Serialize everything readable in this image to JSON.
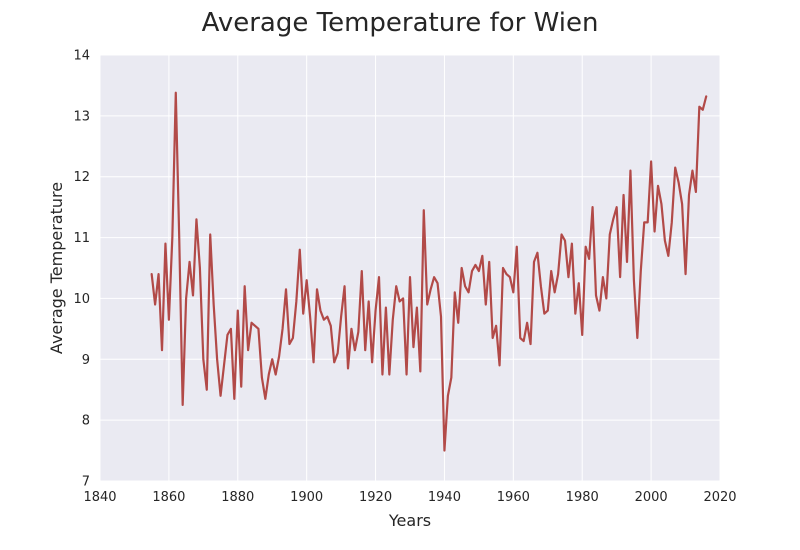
{
  "chart_data": {
    "type": "line",
    "title": "Average Temperature for Wien",
    "xlabel": "Years",
    "ylabel": "Average Temperature",
    "xlim": [
      1840,
      2020
    ],
    "ylim": [
      7,
      14
    ],
    "xticks": [
      "1840",
      "1860",
      "1880",
      "1900",
      "1920",
      "1940",
      "1960",
      "1980",
      "2000",
      "2020"
    ],
    "yticks": [
      "7",
      "8",
      "9",
      "10",
      "11",
      "12",
      "13",
      "14"
    ],
    "grid": true,
    "legend": "none",
    "background_color": "#eaeaf2",
    "series": [
      {
        "color": "#b24a48",
        "x": [
          1855,
          1856,
          1857,
          1858,
          1859,
          1860,
          1861,
          1862,
          1863,
          1864,
          1865,
          1866,
          1867,
          1868,
          1869,
          1870,
          1871,
          1872,
          1873,
          1874,
          1875,
          1876,
          1877,
          1878,
          1879,
          1880,
          1881,
          1882,
          1883,
          1884,
          1885,
          1886,
          1887,
          1888,
          1889,
          1890,
          1891,
          1892,
          1893,
          1894,
          1895,
          1896,
          1897,
          1898,
          1899,
          1900,
          1901,
          1902,
          1903,
          1904,
          1905,
          1906,
          1907,
          1908,
          1909,
          1910,
          1911,
          1912,
          1913,
          1914,
          1915,
          1916,
          1917,
          1918,
          1919,
          1920,
          1921,
          1922,
          1923,
          1924,
          1925,
          1926,
          1927,
          1928,
          1929,
          1930,
          1931,
          1932,
          1933,
          1934,
          1935,
          1936,
          1937,
          1938,
          1939,
          1940,
          1941,
          1942,
          1943,
          1944,
          1945,
          1946,
          1947,
          1948,
          1949,
          1950,
          1951,
          1952,
          1953,
          1954,
          1955,
          1956,
          1957,
          1958,
          1959,
          1960,
          1961,
          1962,
          1963,
          1964,
          1965,
          1966,
          1967,
          1968,
          1969,
          1970,
          1971,
          1972,
          1973,
          1974,
          1975,
          1976,
          1977,
          1978,
          1979,
          1980,
          1981,
          1982,
          1983,
          1984,
          1985,
          1986,
          1987,
          1988,
          1989,
          1990,
          1991,
          1992,
          1993,
          1994,
          1995,
          1996,
          1997,
          1998,
          1999,
          2000,
          2001,
          2002,
          2003,
          2004,
          2005,
          2006,
          2007,
          2008,
          2009,
          2010,
          2011,
          2012,
          2013,
          2014,
          2015,
          2016
        ],
        "y": [
          10.4,
          9.9,
          10.4,
          9.15,
          10.9,
          9.65,
          11.0,
          13.38,
          11.0,
          8.25,
          10.0,
          10.6,
          10.05,
          11.3,
          10.5,
          9.0,
          8.5,
          11.05,
          9.9,
          9.0,
          8.4,
          8.9,
          9.4,
          9.5,
          8.35,
          9.8,
          8.55,
          10.2,
          9.15,
          9.6,
          9.55,
          9.5,
          8.7,
          8.35,
          8.75,
          9.0,
          8.75,
          9.05,
          9.5,
          10.15,
          9.25,
          9.35,
          9.95,
          10.8,
          9.75,
          10.3,
          9.7,
          8.95,
          10.15,
          9.8,
          9.65,
          9.7,
          9.55,
          8.95,
          9.1,
          9.7,
          10.2,
          8.85,
          9.5,
          9.15,
          9.45,
          10.45,
          9.15,
          9.95,
          8.95,
          9.8,
          10.35,
          8.75,
          9.85,
          8.75,
          9.65,
          10.2,
          9.95,
          10.0,
          8.75,
          10.35,
          9.2,
          9.85,
          8.8,
          11.45,
          9.9,
          10.15,
          10.35,
          10.25,
          9.7,
          7.5,
          8.4,
          8.7,
          10.1,
          9.6,
          10.5,
          10.2,
          10.1,
          10.45,
          10.55,
          10.45,
          10.7,
          9.9,
          10.6,
          9.35,
          9.55,
          8.9,
          10.5,
          10.4,
          10.35,
          10.1,
          10.85,
          9.35,
          9.3,
          9.6,
          9.25,
          10.6,
          10.75,
          10.2,
          9.75,
          9.8,
          10.45,
          10.1,
          10.4,
          11.05,
          10.95,
          10.35,
          10.9,
          9.75,
          10.25,
          9.4,
          10.85,
          10.65,
          11.5,
          10.05,
          9.8,
          10.35,
          10.0,
          11.05,
          11.3,
          11.5,
          10.35,
          11.7,
          10.6,
          12.1,
          10.3,
          9.35,
          10.45,
          11.25,
          11.25,
          12.25,
          11.1,
          11.85,
          11.55,
          10.95,
          10.7,
          11.25,
          12.15,
          11.9,
          11.55,
          10.4,
          11.7,
          12.1,
          11.75,
          13.15,
          13.1,
          13.32
        ]
      }
    ]
  }
}
